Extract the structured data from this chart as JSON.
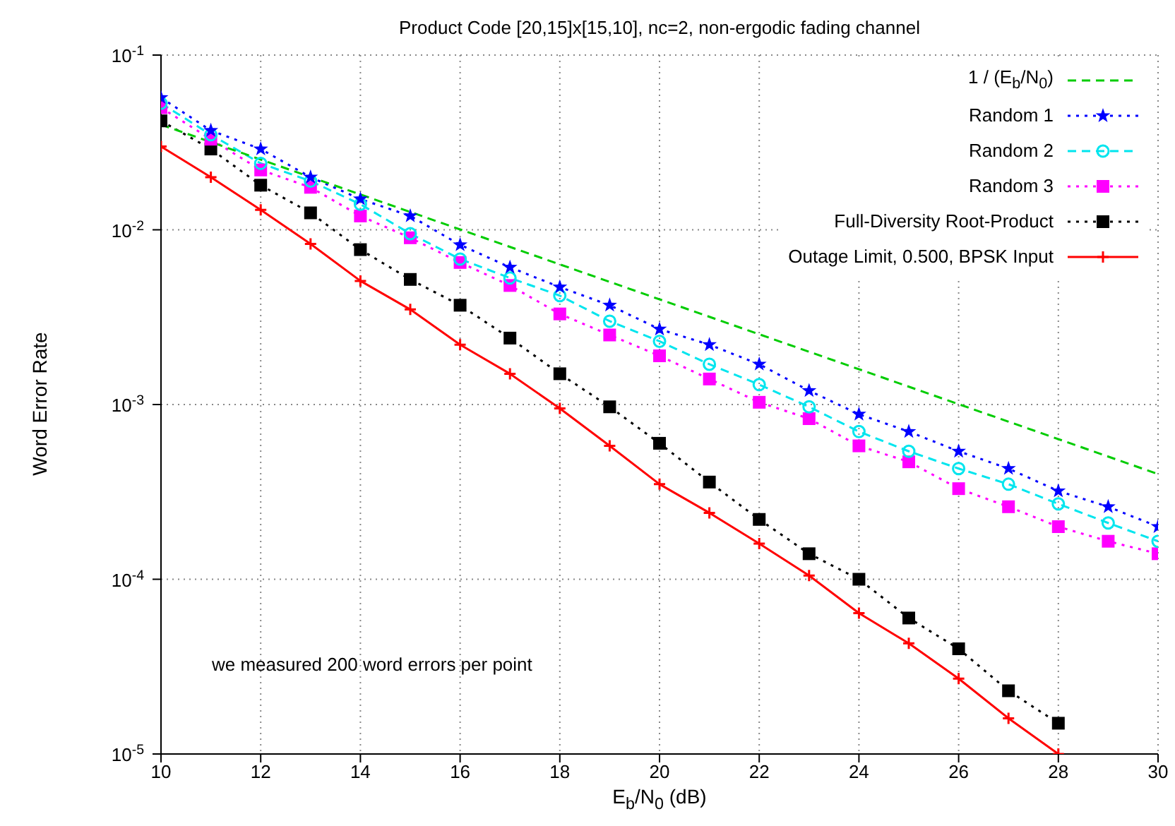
{
  "chart_data": {
    "type": "line",
    "title": "Product Code [20,15]x[15,10], nc=2, non-ergodic fading channel",
    "xlabel": "E$_{b}$/N$_{0}$ (dB)",
    "ylabel": "Word Error Rate",
    "annotations": [
      "we measured 200 word errors per point"
    ],
    "x": [
      10,
      11,
      12,
      13,
      14,
      15,
      16,
      17,
      18,
      19,
      20,
      21,
      22,
      23,
      24,
      25,
      26,
      27,
      28,
      29,
      30
    ],
    "series": [
      {
        "name": "1 / (E$_{b}$/N$_{0}$)",
        "color": "#00cc00",
        "x": [
          10,
          30
        ],
        "values": [
          0.04,
          0.0004
        ],
        "marker": "none",
        "line_style": "dashed"
      },
      {
        "name": "Random 1",
        "color": "#0000ff",
        "values": [
          0.057,
          0.037,
          0.029,
          0.02,
          0.015,
          0.012,
          0.0082,
          0.0061,
          0.0047,
          0.0037,
          0.0027,
          0.0022,
          0.0017,
          0.0012,
          0.00088,
          0.0007,
          0.00054,
          0.00043,
          0.00032,
          0.00026,
          0.0002
        ],
        "marker": "star",
        "line_style": "dotted"
      },
      {
        "name": "Random 2",
        "color": "#00e5ee",
        "values": [
          0.053,
          0.035,
          0.024,
          0.019,
          0.014,
          0.0095,
          0.0068,
          0.0053,
          0.0042,
          0.003,
          0.0023,
          0.0017,
          0.0013,
          0.00097,
          0.0007,
          0.00054,
          0.00043,
          0.00035,
          0.00027,
          0.00021,
          0.000165
        ],
        "marker": "circle",
        "line_style": "dashed"
      },
      {
        "name": "Random 3",
        "color": "#ff00ff",
        "values": [
          0.05,
          0.033,
          0.022,
          0.0175,
          0.012,
          0.009,
          0.0065,
          0.0048,
          0.0033,
          0.0025,
          0.0019,
          0.0014,
          0.00103,
          0.00083,
          0.00058,
          0.00047,
          0.00033,
          0.00026,
          0.0002,
          0.000165,
          0.00014
        ],
        "marker": "square",
        "line_style": "dotted"
      },
      {
        "name": "Full-Diversity Root-Product",
        "color": "#000000",
        "x": [
          10,
          11,
          12,
          13,
          14,
          15,
          16,
          17,
          18,
          19,
          20,
          21,
          22,
          23,
          24,
          25,
          26,
          27,
          28
        ],
        "values": [
          0.042,
          0.029,
          0.018,
          0.0125,
          0.0077,
          0.0052,
          0.0037,
          0.0024,
          0.0015,
          0.00097,
          0.0006,
          0.00036,
          0.00022,
          0.00014,
          0.0001,
          6e-05,
          4e-05,
          2.3e-05,
          1.5e-05
        ],
        "marker": "square",
        "line_style": "dotted"
      },
      {
        "name": "Outage Limit, 0.500, BPSK Input",
        "color": "#ff0000",
        "x": [
          10,
          11,
          12,
          13,
          14,
          15,
          16,
          17,
          18,
          19,
          20,
          21,
          22,
          23,
          24,
          25,
          26,
          27,
          28
        ],
        "values": [
          0.03,
          0.02,
          0.013,
          0.0083,
          0.0051,
          0.0035,
          0.0022,
          0.0015,
          0.00095,
          0.00058,
          0.00035,
          0.00024,
          0.00016,
          0.000105,
          6.4e-05,
          4.3e-05,
          2.7e-05,
          1.6e-05,
          1e-05
        ],
        "marker": "cross",
        "line_style": "solid"
      }
    ],
    "xlim": [
      10,
      30
    ],
    "xticks": [
      10,
      12,
      14,
      16,
      18,
      20,
      22,
      24,
      26,
      28,
      30
    ],
    "ylim": [
      1e-05,
      0.1
    ],
    "log": "y",
    "yticks": [
      {
        "value": 1e-05,
        "label": "10$^{-5}$"
      },
      {
        "value": 0.0001,
        "label": "10$^{-4}$"
      },
      {
        "value": 0.001,
        "label": "10$^{-3}$"
      },
      {
        "value": 0.01,
        "label": "10$^{-2}$"
      },
      {
        "value": 0.1,
        "label": "10$^{-1}$"
      }
    ],
    "grid": true,
    "legend": "top right"
  }
}
